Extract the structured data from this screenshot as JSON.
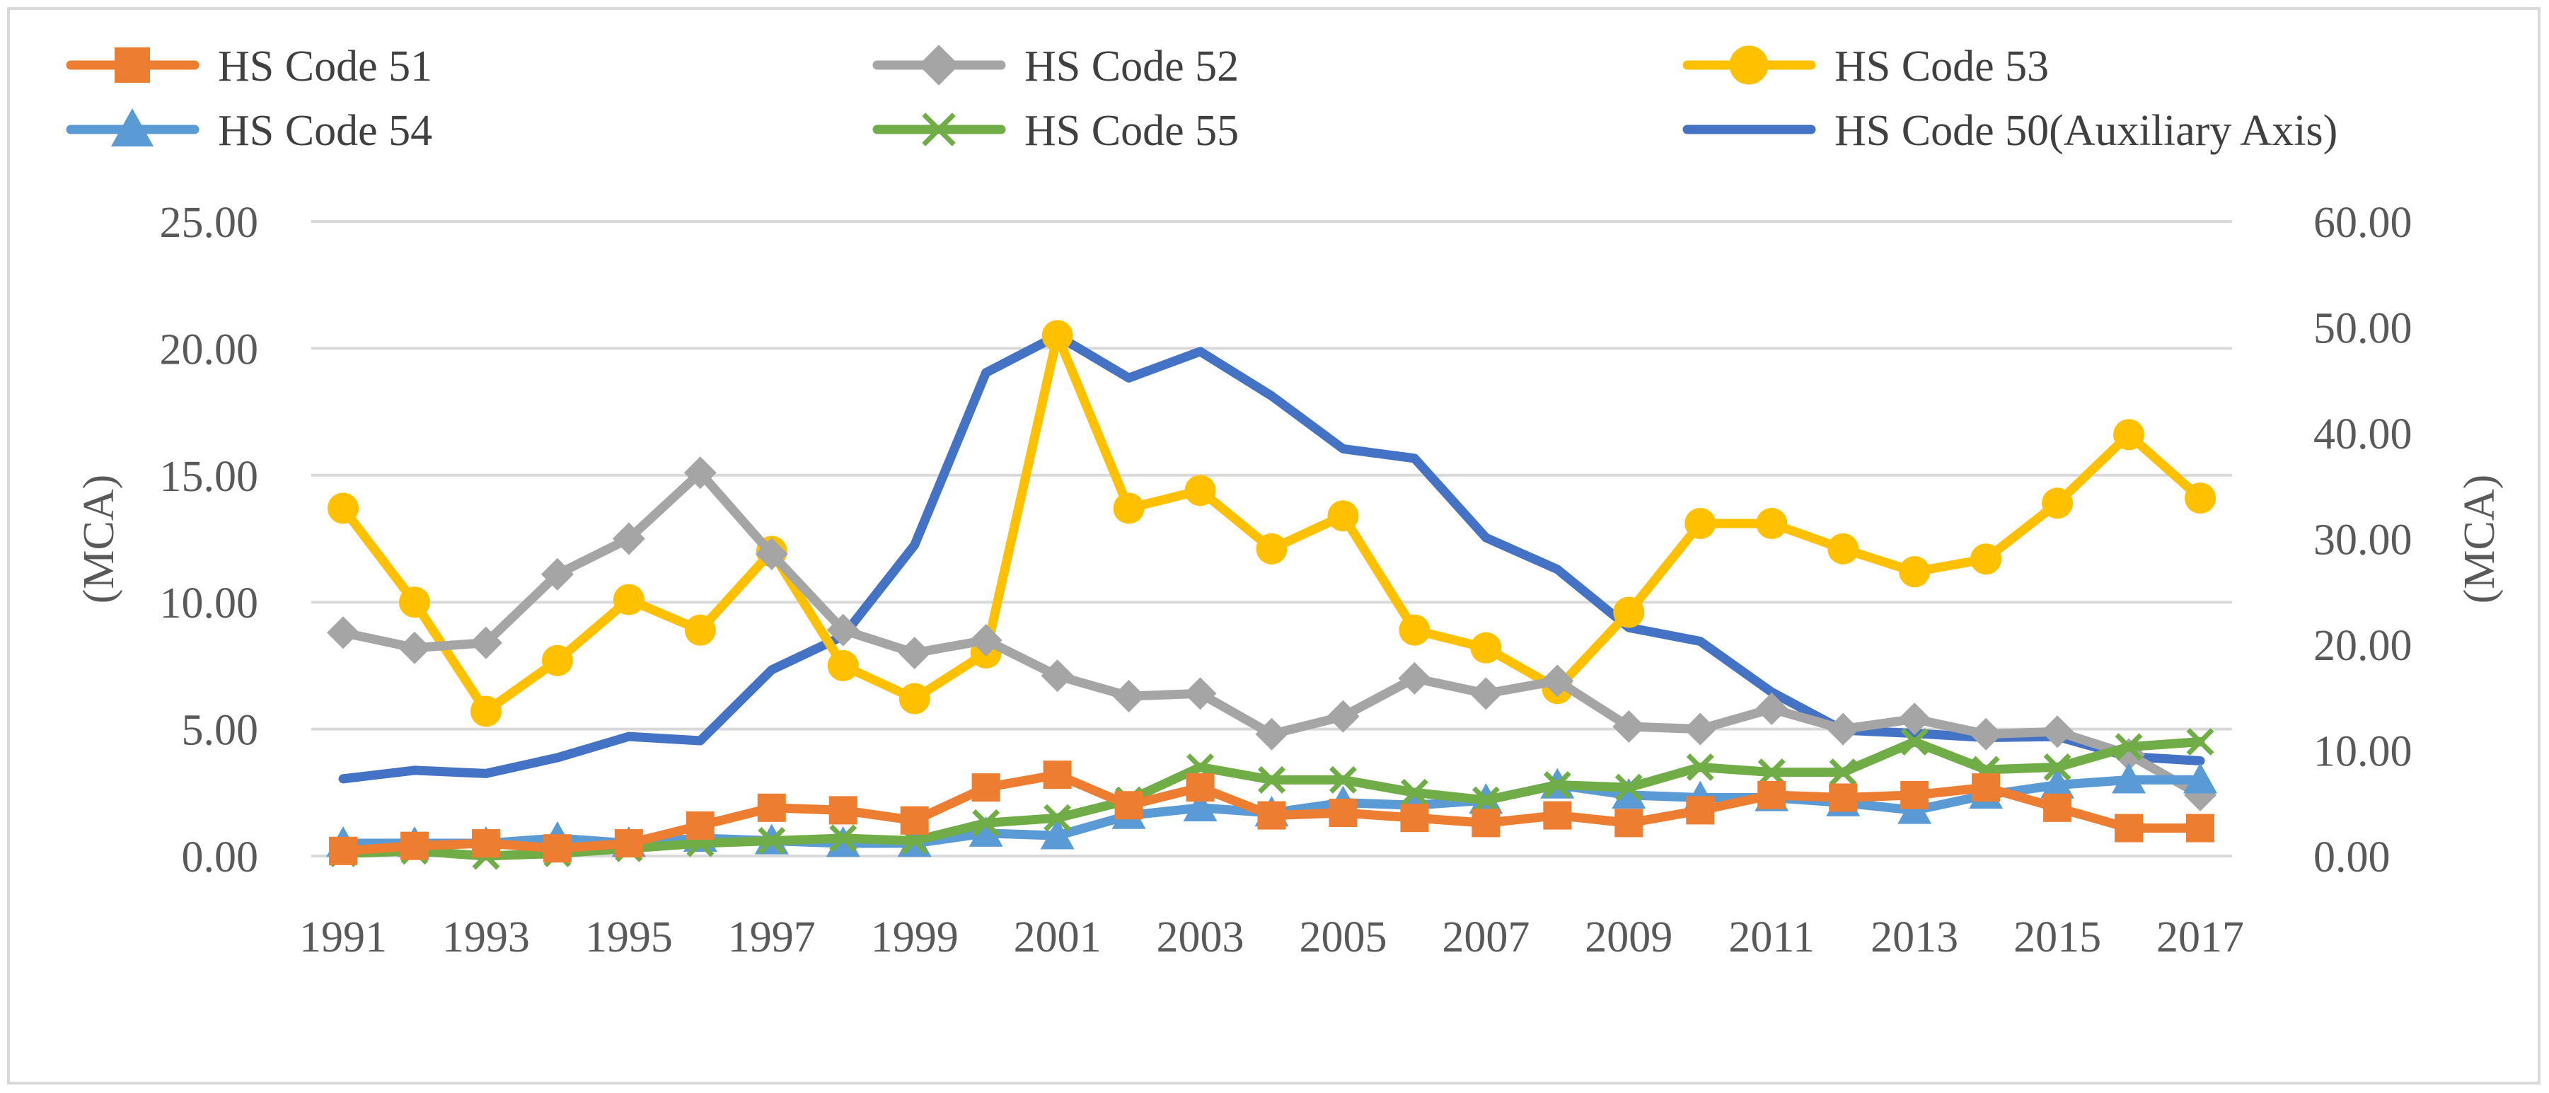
{
  "chart_data": {
    "type": "line",
    "title": "",
    "xlabel": "",
    "ylabel": "(MCA)",
    "ylabel_right": "(MCA)",
    "ylim": [
      0,
      25
    ],
    "ylim_right": [
      0,
      60
    ],
    "yticks": [
      "0.00",
      "5.00",
      "10.00",
      "15.00",
      "20.00",
      "25.00"
    ],
    "yticks_right": [
      "0.00",
      "10.00",
      "20.00",
      "30.00",
      "40.00",
      "50.00",
      "60.00"
    ],
    "x": [
      1991,
      1992,
      1993,
      1994,
      1995,
      1996,
      1997,
      1998,
      1999,
      2000,
      2001,
      2002,
      2003,
      2004,
      2005,
      2006,
      2007,
      2008,
      2009,
      2010,
      2011,
      2012,
      2013,
      2014,
      2015,
      2016,
      2017
    ],
    "xtick_labels": [
      "1991",
      "1993",
      "1995",
      "1997",
      "1999",
      "2001",
      "2003",
      "2005",
      "2007",
      "2009",
      "2011",
      "2013",
      "2015",
      "2017"
    ],
    "grid": true,
    "legend_position": "top",
    "series": [
      {
        "name": "HS Code 51",
        "axis": "left",
        "color": "#ed7d31",
        "marker": "square",
        "values": [
          0.2,
          0.4,
          0.5,
          0.3,
          0.5,
          1.2,
          1.9,
          1.8,
          1.4,
          2.7,
          3.2,
          2.0,
          2.7,
          1.6,
          1.7,
          1.5,
          1.3,
          1.6,
          1.3,
          1.8,
          2.4,
          2.3,
          2.4,
          2.7,
          1.9,
          1.1,
          1.1
        ]
      },
      {
        "name": "HS Code 52",
        "axis": "left",
        "color": "#a5a5a5",
        "marker": "diamond",
        "values": [
          8.8,
          8.2,
          8.4,
          11.1,
          12.5,
          15.1,
          11.9,
          8.9,
          8.0,
          8.5,
          7.1,
          6.3,
          6.4,
          4.8,
          5.5,
          7.0,
          6.4,
          6.9,
          5.1,
          5.0,
          5.8,
          5.0,
          5.4,
          4.8,
          4.9,
          4.0,
          2.4
        ]
      },
      {
        "name": "HS Code 53",
        "axis": "left",
        "color": "#ffc000",
        "marker": "circle",
        "values": [
          13.7,
          10.0,
          5.7,
          7.7,
          10.1,
          8.9,
          12.0,
          7.5,
          6.2,
          8.0,
          20.5,
          13.7,
          14.4,
          12.1,
          13.4,
          8.9,
          8.2,
          6.6,
          9.6,
          13.1,
          13.1,
          12.1,
          11.2,
          11.7,
          13.9,
          16.6,
          14.1
        ]
      },
      {
        "name": "HS Code 54",
        "axis": "left",
        "color": "#5b9bd5",
        "marker": "triangle",
        "values": [
          0.5,
          0.5,
          0.5,
          0.7,
          0.5,
          0.7,
          0.6,
          0.5,
          0.5,
          0.9,
          0.8,
          1.6,
          1.9,
          1.7,
          2.1,
          2.0,
          2.2,
          2.8,
          2.4,
          2.3,
          2.3,
          2.1,
          1.8,
          2.4,
          2.8,
          3.0,
          3.0
        ]
      },
      {
        "name": "HS Code 55",
        "axis": "left",
        "color": "#70ad47",
        "marker": "x",
        "values": [
          0.1,
          0.2,
          0.0,
          0.1,
          0.3,
          0.5,
          0.6,
          0.7,
          0.6,
          1.3,
          1.5,
          2.2,
          3.5,
          3.0,
          3.0,
          2.5,
          2.2,
          2.8,
          2.7,
          3.5,
          3.3,
          3.3,
          4.5,
          3.4,
          3.5,
          4.3,
          4.5
        ]
      },
      {
        "name": "HS Code 50(Auxiliary Axis)",
        "axis": "right",
        "color": "#4472c4",
        "marker": "none",
        "values": [
          7.3,
          8.1,
          7.8,
          9.3,
          11.3,
          10.9,
          17.6,
          20.8,
          29.4,
          45.7,
          49.2,
          45.2,
          47.7,
          43.5,
          38.5,
          37.6,
          30.1,
          27.1,
          21.6,
          20.3,
          15.5,
          11.9,
          11.6,
          11.2,
          11.3,
          9.4,
          9.0
        ]
      }
    ]
  }
}
